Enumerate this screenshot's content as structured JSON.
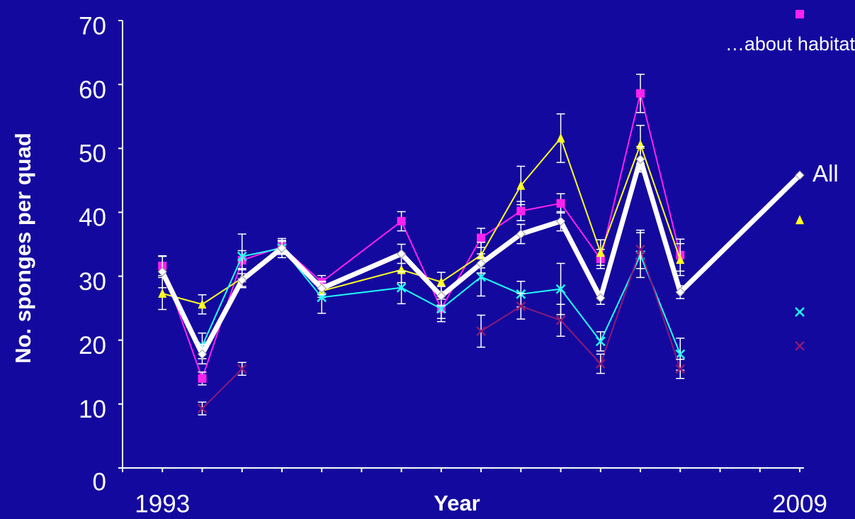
{
  "chart_data": {
    "type": "line",
    "y_label": "No. sponges per quad",
    "x_label": "Year",
    "annotation": "…about habitat",
    "xlim": [
      1992,
      2009
    ],
    "xticks": [
      1993,
      2009
    ],
    "x_minor_ticks": [
      1992,
      1993,
      1994,
      1995,
      1996,
      1997,
      1998,
      1999,
      2000,
      2001,
      2002,
      2003,
      2004,
      2005,
      2006,
      2007,
      2008,
      2009
    ],
    "ylim": [
      0,
      70
    ],
    "yticks": [
      0,
      10,
      20,
      30,
      40,
      50,
      60,
      70
    ],
    "series": [
      {
        "color": "#ff22ee",
        "marker": "square",
        "width": 2,
        "x": [
          1993,
          1994,
          1995,
          1996,
          1997,
          1999,
          2000,
          2001,
          2002,
          2003,
          2004,
          2005,
          2006,
          2007,
          2009
        ],
        "values": [
          31.6,
          14,
          32.5,
          34.6,
          29.1,
          38.6,
          24.9,
          36,
          40.2,
          41.4,
          32.7,
          58.6,
          33.3,
          null,
          71
        ],
        "errors": [
          1.5,
          1,
          1.5,
          1,
          1,
          1.5,
          1.5,
          1.5,
          1.5,
          1.5,
          1.5,
          3,
          2.5,
          null,
          null
        ]
      },
      {
        "color": "#ffff22",
        "marker": "triangle",
        "width": 2,
        "x": [
          1993,
          1994,
          1995,
          1996,
          1997,
          1999,
          2000,
          2001,
          2002,
          2003,
          2004,
          2005,
          2006,
          2007,
          2009
        ],
        "values": [
          27.3,
          25.6,
          29.7,
          34.6,
          27.7,
          31,
          29.1,
          33.3,
          44.2,
          51.6,
          33.7,
          50.6,
          32.6,
          null,
          38.8
        ],
        "errors": [
          2.5,
          1.5,
          1.5,
          1,
          1,
          2,
          1.5,
          2,
          3,
          3.8,
          2,
          3,
          2.5,
          null,
          null
        ]
      },
      {
        "color": "#22ffff",
        "marker": "x",
        "width": 2,
        "x": [
          1994,
          1995,
          1996,
          1997,
          1999,
          2000,
          2001,
          2002,
          2003,
          2004,
          2005,
          2006,
          2007,
          2009
        ],
        "values": [
          19.1,
          33.1,
          34.4,
          26.7,
          28.2,
          24.9,
          29.9,
          27.2,
          28,
          19.8,
          33.3,
          17.8,
          null,
          24.4
        ],
        "errors": [
          2,
          3.5,
          1,
          2.5,
          2.5,
          2,
          3,
          2,
          4,
          1.5,
          3.5,
          2.5,
          null,
          null
        ]
      },
      {
        "color": "#8a1a78",
        "marker": "x",
        "width": 2,
        "x": [
          1994,
          1995,
          1996,
          2001,
          2002,
          2003,
          2004,
          2005,
          2006,
          2007,
          2009
        ],
        "values": [
          9.3,
          15.5,
          null,
          21.4,
          25.3,
          23.1,
          16.3,
          34.2,
          15.5,
          null,
          19.1
        ],
        "errors": [
          1,
          1,
          null,
          2.5,
          2,
          2.5,
          1.5,
          3,
          1.5,
          null,
          null
        ]
      },
      {
        "name": "All",
        "color": "#ffffff",
        "marker": "diamond",
        "width": 7,
        "x": [
          1993,
          1994,
          1995,
          1996,
          1997,
          1999,
          2000,
          2001,
          2002,
          2003,
          2004,
          2005,
          2006,
          2009
        ],
        "values": [
          30.7,
          17.8,
          29.4,
          34.4,
          28.1,
          33.5,
          26.9,
          32,
          36.6,
          38.6,
          26.6,
          48.3,
          27.5,
          45.8
        ],
        "errors": [
          2.5,
          1.5,
          1,
          1.5,
          1,
          1.5,
          1.5,
          1.5,
          1.5,
          1.5,
          1,
          2,
          1,
          null
        ]
      }
    ]
  }
}
